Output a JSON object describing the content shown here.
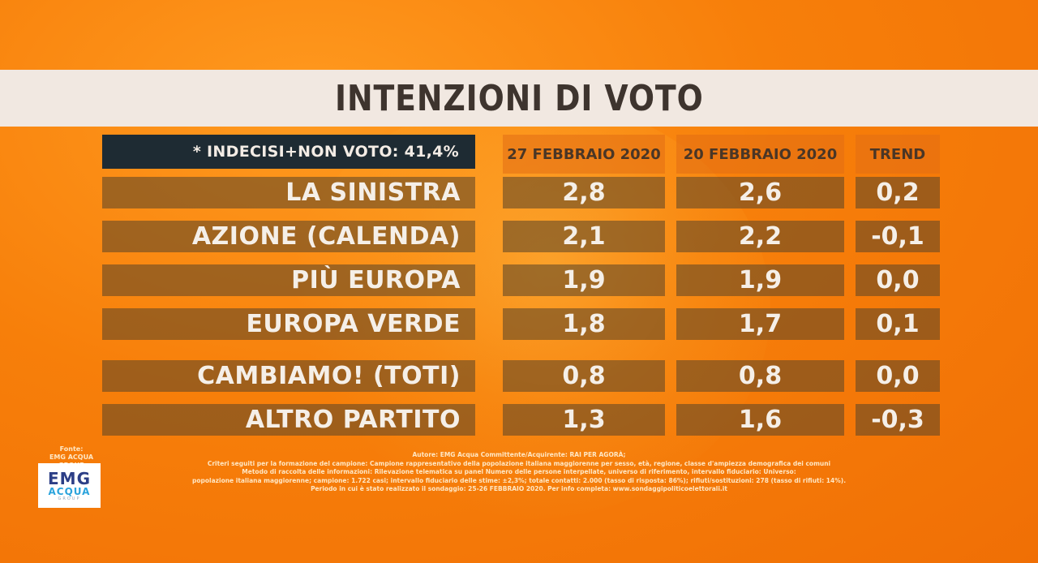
{
  "title": "INTENZIONI DI VOTO",
  "note": "* INDECISI+NON VOTO: 41,4%",
  "chart_data": {
    "type": "table",
    "columns": [
      "27 FEBBRAIO 2020",
      "20 FEBBRAIO 2020",
      "TREND"
    ],
    "rows": [
      {
        "label": "LA SINISTRA",
        "values": [
          "2,8",
          "2,6",
          "0,2"
        ]
      },
      {
        "label": "AZIONE (CALENDA)",
        "values": [
          "2,1",
          "2,2",
          "-0,1"
        ]
      },
      {
        "label": "PIÙ EUROPA",
        "values": [
          "1,9",
          "1,9",
          "0,0"
        ]
      },
      {
        "label": "EUROPA VERDE",
        "values": [
          "1,8",
          "1,7",
          "0,1"
        ]
      },
      {
        "label": "CAMBIAMO! (TOTI)",
        "values": [
          "0,8",
          "0,8",
          "0,0"
        ]
      },
      {
        "label": "ALTRO PARTITO",
        "values": [
          "1,3",
          "1,6",
          "-0,3"
        ]
      }
    ]
  },
  "source": {
    "fonte_label": "Fonte:",
    "fonte_name": "EMG ACQUA GROUP",
    "logo_main": "EMG",
    "logo_sub": "ACQUA",
    "logo_tag": "GROUP"
  },
  "footnote_lines": [
    "Autore: EMG Acqua Committente/Acquirente: RAI PER AGORÀ;",
    "Criteri seguiti per la formazione del campione: Campione rappresentativo della popolazione italiana maggiorenne per sesso, età, regione, classe d'ampiezza demografica dei comuni",
    "Metodo di raccolta delle informazioni: Rilevazione telematica su panel Numero delle persone interpellate, universo di riferimento, intervallo fiduciario: Universo:",
    "popolazione italiana maggiorenne; campione: 1.722 casi; intervallo fiduciario delle stime: ±2,3%; totale contatti: 2.000 (tasso di risposta: 86%); rifiuti/sostituzioni: 278 (tasso di rifiuti: 14%).",
    "Periodo in cui è stato realizzato il sondaggio: 25-26 FEBBRAIO 2020. Per info completa: www.sondaggipoliticoelettorali.it"
  ],
  "colors": {
    "background": "#f77f0a",
    "title_bar": "#f1e8e1",
    "title_text": "#3e342e",
    "note_box": "#1e2b33",
    "row_fill": "#6a4c2b"
  }
}
